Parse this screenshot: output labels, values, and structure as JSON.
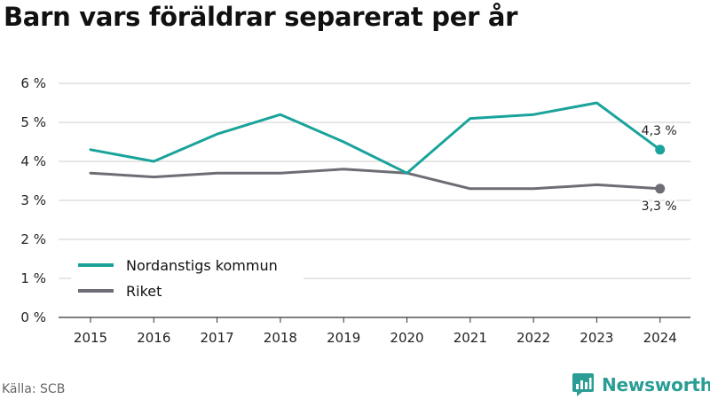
{
  "title": "Barn vars föräldrar separerat per år",
  "source": "Källa: SCB",
  "brand": {
    "name": "Newsworthy",
    "icon": "newsworthy-logo-icon",
    "color": "#2a9d94"
  },
  "chart_data": {
    "type": "line",
    "x": [
      "2015",
      "2016",
      "2017",
      "2018",
      "2019",
      "2020",
      "2021",
      "2022",
      "2023",
      "2024"
    ],
    "series": [
      {
        "name": "Nordanstigs kommun",
        "color": "#1aa39a",
        "values": [
          4.3,
          4.0,
          4.7,
          5.2,
          4.5,
          3.7,
          5.1,
          5.2,
          5.5,
          4.3
        ],
        "end_label": "4,3 %"
      },
      {
        "name": "Riket",
        "color": "#6e6d75",
        "values": [
          3.7,
          3.6,
          3.7,
          3.7,
          3.8,
          3.7,
          3.3,
          3.3,
          3.4,
          3.3
        ],
        "end_label": "3,3 %"
      }
    ],
    "ylim": [
      0,
      6
    ],
    "yticks": [
      0,
      1,
      2,
      3,
      4,
      5,
      6
    ],
    "ytick_labels": [
      "0 %",
      "1 %",
      "2 %",
      "3 %",
      "4 %",
      "5 %",
      "6 %"
    ],
    "grid": true,
    "legend_position": "bottom-left"
  }
}
